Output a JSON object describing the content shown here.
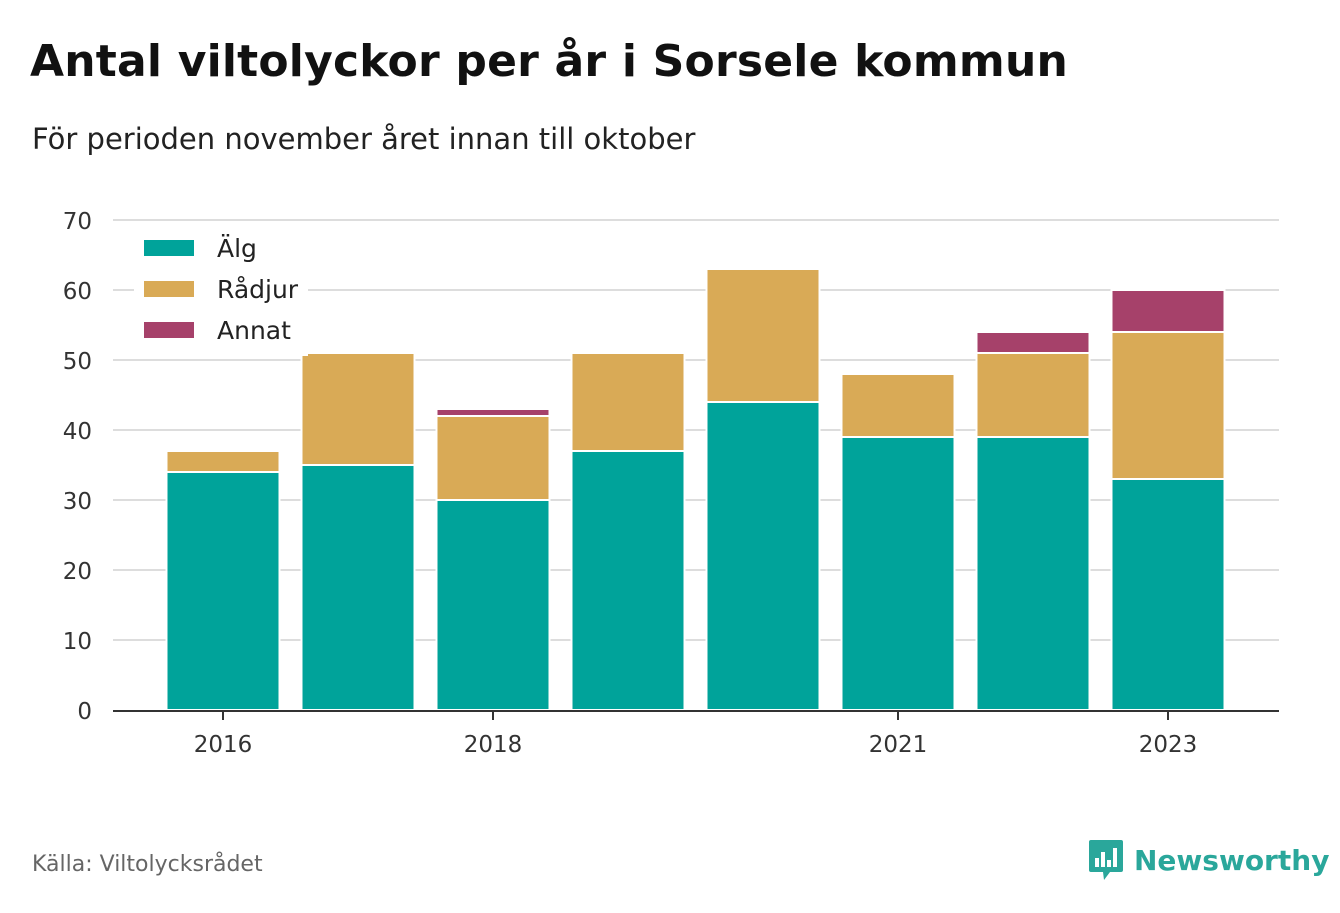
{
  "header": {
    "title": "Antal viltolyckor per år i Sorsele kommun",
    "subtitle": "För perioden november året innan till oktober"
  },
  "footer": {
    "source": "Källa: Viltolycksrådet",
    "brand": "Newsworthy",
    "brand_icon": "bar-chart-bubble-icon"
  },
  "colors": {
    "alg": "#00a39a",
    "radjur": "#d9aa56",
    "annat": "#a6416a",
    "grid": "#dddddd",
    "axis": "#333333",
    "brand": "#2aa79b"
  },
  "chart_data": {
    "type": "bar",
    "stacked": true,
    "categories": [
      "2016",
      "2017",
      "2018",
      "2019",
      "2020",
      "2021",
      "2022",
      "2023"
    ],
    "tick_labels": [
      "2016",
      "",
      "2018",
      "",
      "",
      "2021",
      "",
      "2023"
    ],
    "series": [
      {
        "name": "Älg",
        "values": [
          34,
          35,
          30,
          37,
          44,
          39,
          39,
          33
        ]
      },
      {
        "name": "Rådjur",
        "values": [
          3,
          16,
          12,
          14,
          19,
          9,
          12,
          21
        ]
      },
      {
        "name": "Annat",
        "values": [
          0,
          0,
          1,
          0,
          0,
          0,
          3,
          6
        ]
      }
    ],
    "ylim": [
      0,
      70
    ],
    "yticks": [
      0,
      10,
      20,
      30,
      40,
      50,
      60,
      70
    ],
    "grid": true,
    "legend_position": "top-left"
  }
}
